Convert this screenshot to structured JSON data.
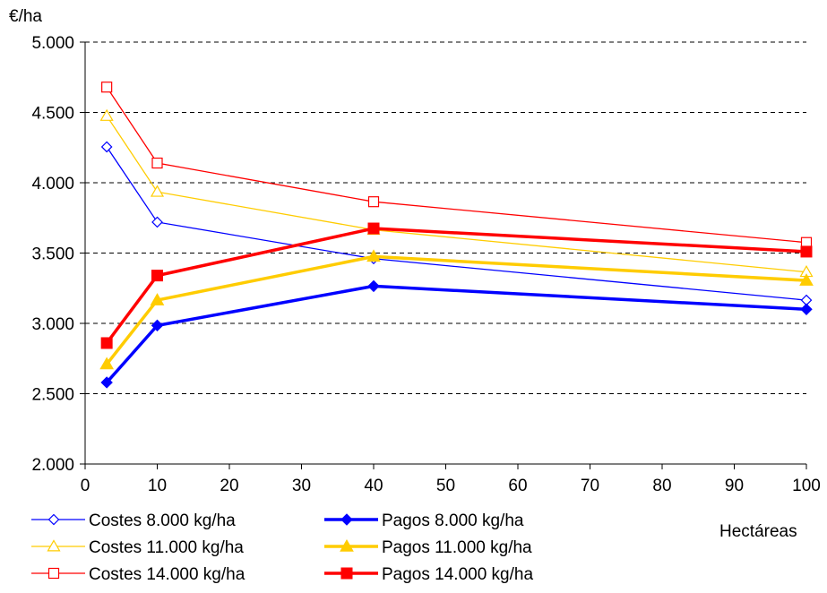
{
  "chart_data": {
    "type": "line",
    "title": "",
    "ylabel": "€/ha",
    "xlabel": "Hectáreas",
    "x": [
      3,
      10,
      40,
      100
    ],
    "xlim": [
      0,
      100
    ],
    "ylim": [
      2000,
      5000
    ],
    "x_ticks": [
      0,
      10,
      20,
      30,
      40,
      50,
      60,
      70,
      80,
      90,
      100
    ],
    "x_tick_labels": [
      "0",
      "10",
      "20",
      "30",
      "40",
      "50",
      "60",
      "70",
      "80",
      "90",
      "100"
    ],
    "y_ticks": [
      2000,
      2500,
      3000,
      3500,
      4000,
      4500,
      5000
    ],
    "y_tick_labels": [
      "2.000",
      "2.500",
      "3.000",
      "3.500",
      "4.000",
      "4.500",
      "5.000"
    ],
    "grid": "horizontal dashed",
    "legend_position": "bottom",
    "series": [
      {
        "name": "Costes 8.000 kg/ha",
        "color": "#0000FF",
        "marker": "diamond-open",
        "values": [
          4255,
          3720,
          3460,
          3165
        ]
      },
      {
        "name": "Pagos 8.000 kg/ha",
        "color": "#0000FF",
        "marker": "diamond-filled",
        "values": [
          2580,
          2985,
          3265,
          3100
        ]
      },
      {
        "name": "Costes 11.000 kg/ha",
        "color": "#FFCC00",
        "marker": "triangle-open",
        "values": [
          4475,
          3935,
          3665,
          3365
        ]
      },
      {
        "name": "Pagos 11.000 kg/ha",
        "color": "#FFCC00",
        "marker": "triangle-filled",
        "values": [
          2710,
          3165,
          3475,
          3305
        ]
      },
      {
        "name": "Costes 14.000 kg/ha",
        "color": "#FF0000",
        "marker": "square-open",
        "values": [
          4680,
          4140,
          3865,
          3575
        ]
      },
      {
        "name": "Pagos 14.000 kg/ha",
        "color": "#FF0000",
        "marker": "square-filled",
        "values": [
          2860,
          3340,
          3675,
          3510
        ]
      }
    ]
  }
}
